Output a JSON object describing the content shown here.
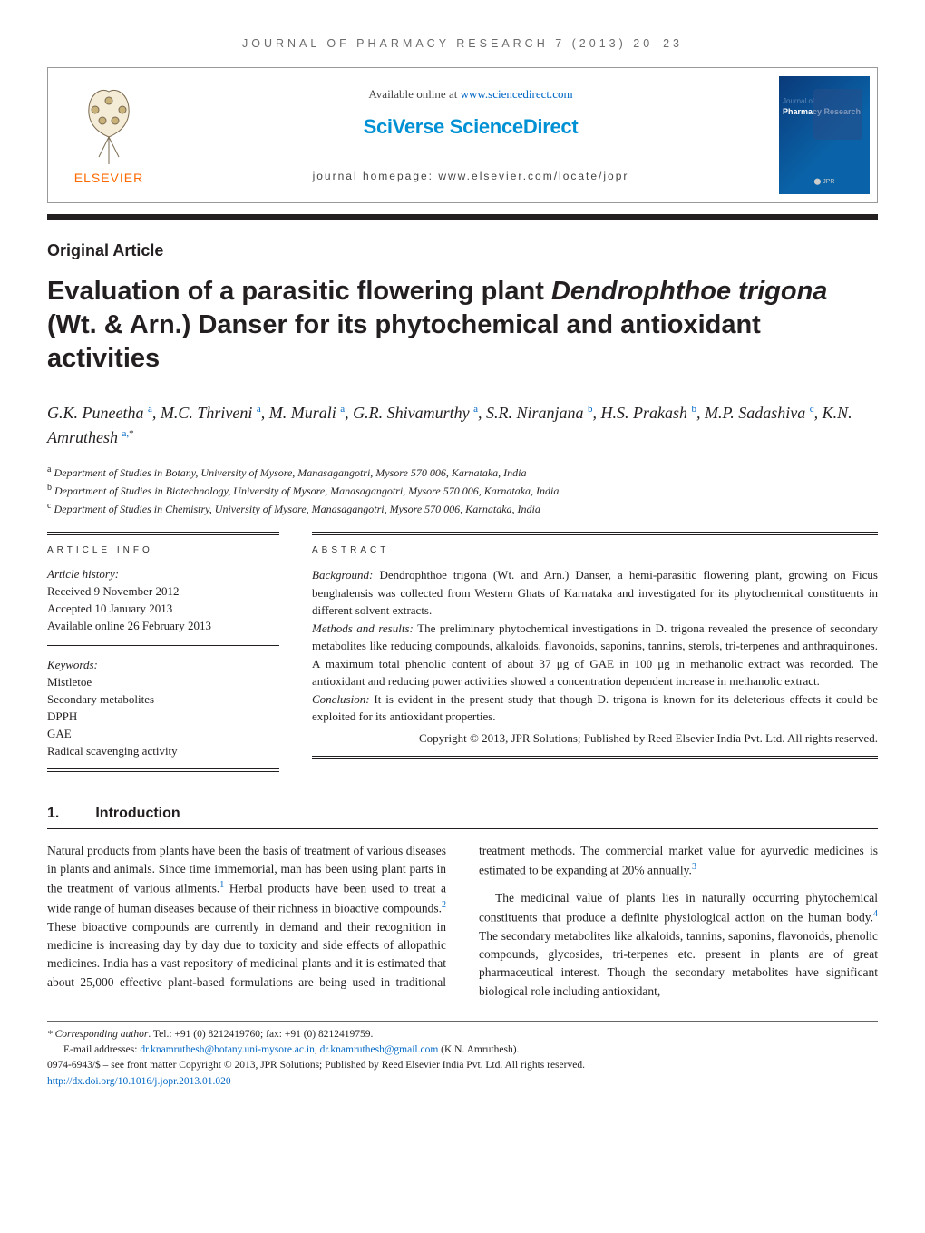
{
  "runningHead": "JOURNAL OF PHARMACY RESEARCH 7 (2013) 20–23",
  "header": {
    "publisherName": "ELSEVIER",
    "availableText": "Available online at ",
    "availableUrl": "www.sciencedirect.com",
    "sciverse": "SciVerse ScienceDirect",
    "jhomepagePrefix": "journal homepage: ",
    "jhomepageUrl": "www.elsevier.com/locate/jopr",
    "coverJournalOf": "Journal of",
    "coverTitle": "Pharmacy Research"
  },
  "articleType": "Original Article",
  "title": {
    "pre": "Evaluation of a parasitic flowering plant ",
    "ital": "Dendrophthoe trigona",
    "post": " (Wt. & Arn.) Danser for its phytochemical and antioxidant activities"
  },
  "authorsHTMLParts": [
    {
      "text": "G.K. Puneetha",
      "sup": "a"
    },
    {
      "text": ", M.C. Thriveni",
      "sup": "a"
    },
    {
      "text": ", M. Murali",
      "sup": "a"
    },
    {
      "text": ", G.R. Shivamurthy",
      "sup": "a"
    },
    {
      "text": ", S.R. Niranjana",
      "sup": "b"
    },
    {
      "text": ", H.S. Prakash",
      "sup": "b"
    },
    {
      "text": ", M.P. Sadashiva",
      "sup": "c"
    },
    {
      "text": ", K.N. Amruthesh",
      "sup": "a,",
      "corr": "*"
    }
  ],
  "affiliations": [
    {
      "sup": "a",
      "text": "Department of Studies in Botany, University of Mysore, Manasagangotri, Mysore 570 006, Karnataka, India"
    },
    {
      "sup": "b",
      "text": "Department of Studies in Biotechnology, University of Mysore, Manasagangotri, Mysore 570 006, Karnataka, India"
    },
    {
      "sup": "c",
      "text": "Department of Studies in Chemistry, University of Mysore, Manasagangotri, Mysore 570 006, Karnataka, India"
    }
  ],
  "infoHeading": "ARTICLE INFO",
  "abstractHeading": "ABSTRACT",
  "history": {
    "label": "Article history:",
    "received": "Received 9 November 2012",
    "accepted": "Accepted 10 January 2013",
    "online": "Available online 26 February 2013"
  },
  "keywordsLabel": "Keywords:",
  "keywords": [
    "Mistletoe",
    "Secondary metabolites",
    "DPPH",
    "GAE",
    "Radical scavenging activity"
  ],
  "abstract": {
    "bg": "Background: Dendrophthoe trigona (Wt. and Arn.) Danser, a hemi-parasitic flowering plant, growing on Ficus benghalensis was collected from Western Ghats of Karnataka and investigated for its phytochemical constituents in different solvent extracts.",
    "mr": "Methods and results: The preliminary phytochemical investigations in D. trigona revealed the presence of secondary metabolites like reducing compounds, alkaloids, flavonoids, saponins, tannins, sterols, tri-terpenes and anthraquinones. A maximum total phenolic content of about 37 μg of GAE in 100 μg in methanolic extract was recorded. The antioxidant and reducing power activities showed a concentration dependent increase in methanolic extract.",
    "cn": "Conclusion: It is evident in the present study that though D. trigona is known for its deleterious effects it could be exploited for its antioxidant properties.",
    "copy": "Copyright © 2013, JPR Solutions; Published by Reed Elsevier India Pvt. Ltd. All rights reserved."
  },
  "section1": {
    "num": "1.",
    "title": "Introduction"
  },
  "body": {
    "p1a": "Natural products from plants have been the basis of treatment of various diseases in plants and animals. Since time immemorial, man has been using plant parts in the treatment of various ailments.",
    "c1": "1",
    "p1b": " Herbal products have been used to treat a wide range of human diseases because of their richness in bioactive compounds.",
    "c2": "2",
    "p1c": " These bioactive compounds are currently in demand and their recognition in medicine is increasing day by day due to toxicity and side effects of allopathic medicines. India has a vast repository of medicinal ",
    "p2a": "plants and it is estimated that about 25,000 effective plant-based formulations are being used in traditional treatment methods. The commercial market value for ayurvedic medicines is estimated to be expanding at 20% annually.",
    "c3": "3",
    "p3a": "The medicinal value of plants lies in naturally occurring phytochemical constituents that produce a definite physiological action on the human body.",
    "c4": "4",
    "p3b": " The secondary metabolites like alkaloids, tannins, saponins, flavonoids, phenolic compounds, glycosides, tri-terpenes etc. present in plants are of great pharmaceutical interest. Though the secondary metabolites have significant biological role including antioxidant,"
  },
  "footnotes": {
    "corrLabel": "* Corresponding author",
    "corrText": ". Tel.: +91 (0) 8212419760; fax: +91 (0) 8212419759.",
    "emailLabel": "E-mail addresses: ",
    "email1": "dr.knamruthesh@botany.uni-mysore.ac.in",
    "emailSep": ", ",
    "email2": "dr.knamruthesh@gmail.com",
    "emailSuffix": " (K.N. Amruthesh).",
    "issn": "0974-6943/$ – see front matter Copyright © 2013, JPR Solutions; Published by Reed Elsevier India Pvt. Ltd. All rights reserved.",
    "doi": "http://dx.doi.org/10.1016/j.jopr.2013.01.020"
  },
  "colors": {
    "link": "#0067c5",
    "orange": "#ff6a00",
    "text": "#231f20"
  }
}
